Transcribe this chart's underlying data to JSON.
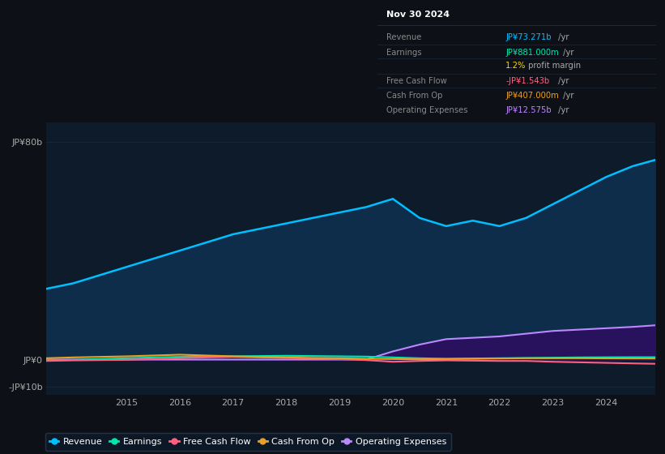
{
  "background_color": "#0d1117",
  "plot_bg_color": "#0d1b2a",
  "years": [
    2013.5,
    2014.0,
    2014.5,
    2015.0,
    2015.5,
    2016.0,
    2016.5,
    2017.0,
    2017.5,
    2018.0,
    2018.5,
    2019.0,
    2019.5,
    2020.0,
    2020.5,
    2021.0,
    2021.5,
    2022.0,
    2022.5,
    2023.0,
    2023.5,
    2024.0,
    2024.5,
    2024.92
  ],
  "revenue": [
    26,
    28,
    31,
    34,
    37,
    40,
    43,
    46,
    48,
    50,
    52,
    54,
    56,
    59,
    52,
    49,
    51,
    49,
    52,
    57,
    62,
    67,
    71,
    73.271
  ],
  "earnings": [
    -0.2,
    -0.1,
    0.2,
    0.5,
    0.8,
    1.0,
    1.1,
    1.2,
    1.3,
    1.4,
    1.3,
    1.2,
    1.1,
    0.8,
    0.5,
    0.3,
    0.4,
    0.5,
    0.6,
    0.7,
    0.8,
    0.85,
    0.88,
    0.881
  ],
  "free_cash_flow": [
    -0.5,
    -0.3,
    -0.2,
    -0.1,
    0.2,
    0.5,
    0.8,
    1.0,
    0.8,
    0.6,
    0.4,
    0.2,
    -0.2,
    -0.8,
    -0.5,
    -0.3,
    -0.4,
    -0.5,
    -0.5,
    -0.8,
    -1.0,
    -1.2,
    -1.4,
    -1.543
  ],
  "cash_from_op": [
    0.5,
    0.8,
    1.0,
    1.2,
    1.5,
    1.8,
    1.5,
    1.2,
    1.0,
    0.8,
    0.6,
    0.5,
    0.3,
    0.2,
    0.1,
    0.2,
    0.3,
    0.4,
    0.5,
    0.5,
    0.5,
    0.45,
    0.42,
    0.407
  ],
  "operating_expenses": [
    0.0,
    0.0,
    0.0,
    0.0,
    0.0,
    0.0,
    0.0,
    0.0,
    0.0,
    0.0,
    0.0,
    0.0,
    0.0,
    3.0,
    5.5,
    7.5,
    8.0,
    8.5,
    9.5,
    10.5,
    11.0,
    11.5,
    12.0,
    12.575
  ],
  "revenue_color": "#00bfff",
  "earnings_color": "#00e5b0",
  "free_cash_flow_color": "#ff6080",
  "cash_from_op_color": "#e8a020",
  "operating_expenses_color": "#bb88ff",
  "revenue_fill_color": "#0d2d4a",
  "operating_expenses_fill_color": "#2d1060",
  "ylim_min": -13,
  "ylim_max": 87,
  "ytick_values": [
    -10,
    0,
    80
  ],
  "ytick_labels": [
    "-JP¥10b",
    "JP¥0",
    "JP¥80b"
  ],
  "xlabel_ticks": [
    2015,
    2016,
    2017,
    2018,
    2019,
    2020,
    2021,
    2022,
    2023,
    2024
  ],
  "info_box_title": "Nov 30 2024",
  "info_rows": [
    {
      "label": "Revenue",
      "value": "JP¥73.271b",
      "suffix": " /yr",
      "value_color": "#00bfff"
    },
    {
      "label": "Earnings",
      "value": "JP¥881.000m",
      "suffix": " /yr",
      "value_color": "#00e5b0"
    },
    {
      "label": "",
      "value": "1.2%",
      "suffix": " profit margin",
      "value_color": "#ffd700",
      "suffix_color": "#aaaaaa"
    },
    {
      "label": "Free Cash Flow",
      "value": "-JP¥1.543b",
      "suffix": " /yr",
      "value_color": "#ff6080"
    },
    {
      "label": "Cash From Op",
      "value": "JP¥407.000m",
      "suffix": " /yr",
      "value_color": "#e8a020"
    },
    {
      "label": "Operating Expenses",
      "value": "JP¥12.575b",
      "suffix": " /yr",
      "value_color": "#bb88ff"
    }
  ],
  "legend_items": [
    {
      "label": "Revenue",
      "color": "#00bfff"
    },
    {
      "label": "Earnings",
      "color": "#00e5b0"
    },
    {
      "label": "Free Cash Flow",
      "color": "#ff6080"
    },
    {
      "label": "Cash From Op",
      "color": "#e8a020"
    },
    {
      "label": "Operating Expenses",
      "color": "#bb88ff"
    }
  ]
}
